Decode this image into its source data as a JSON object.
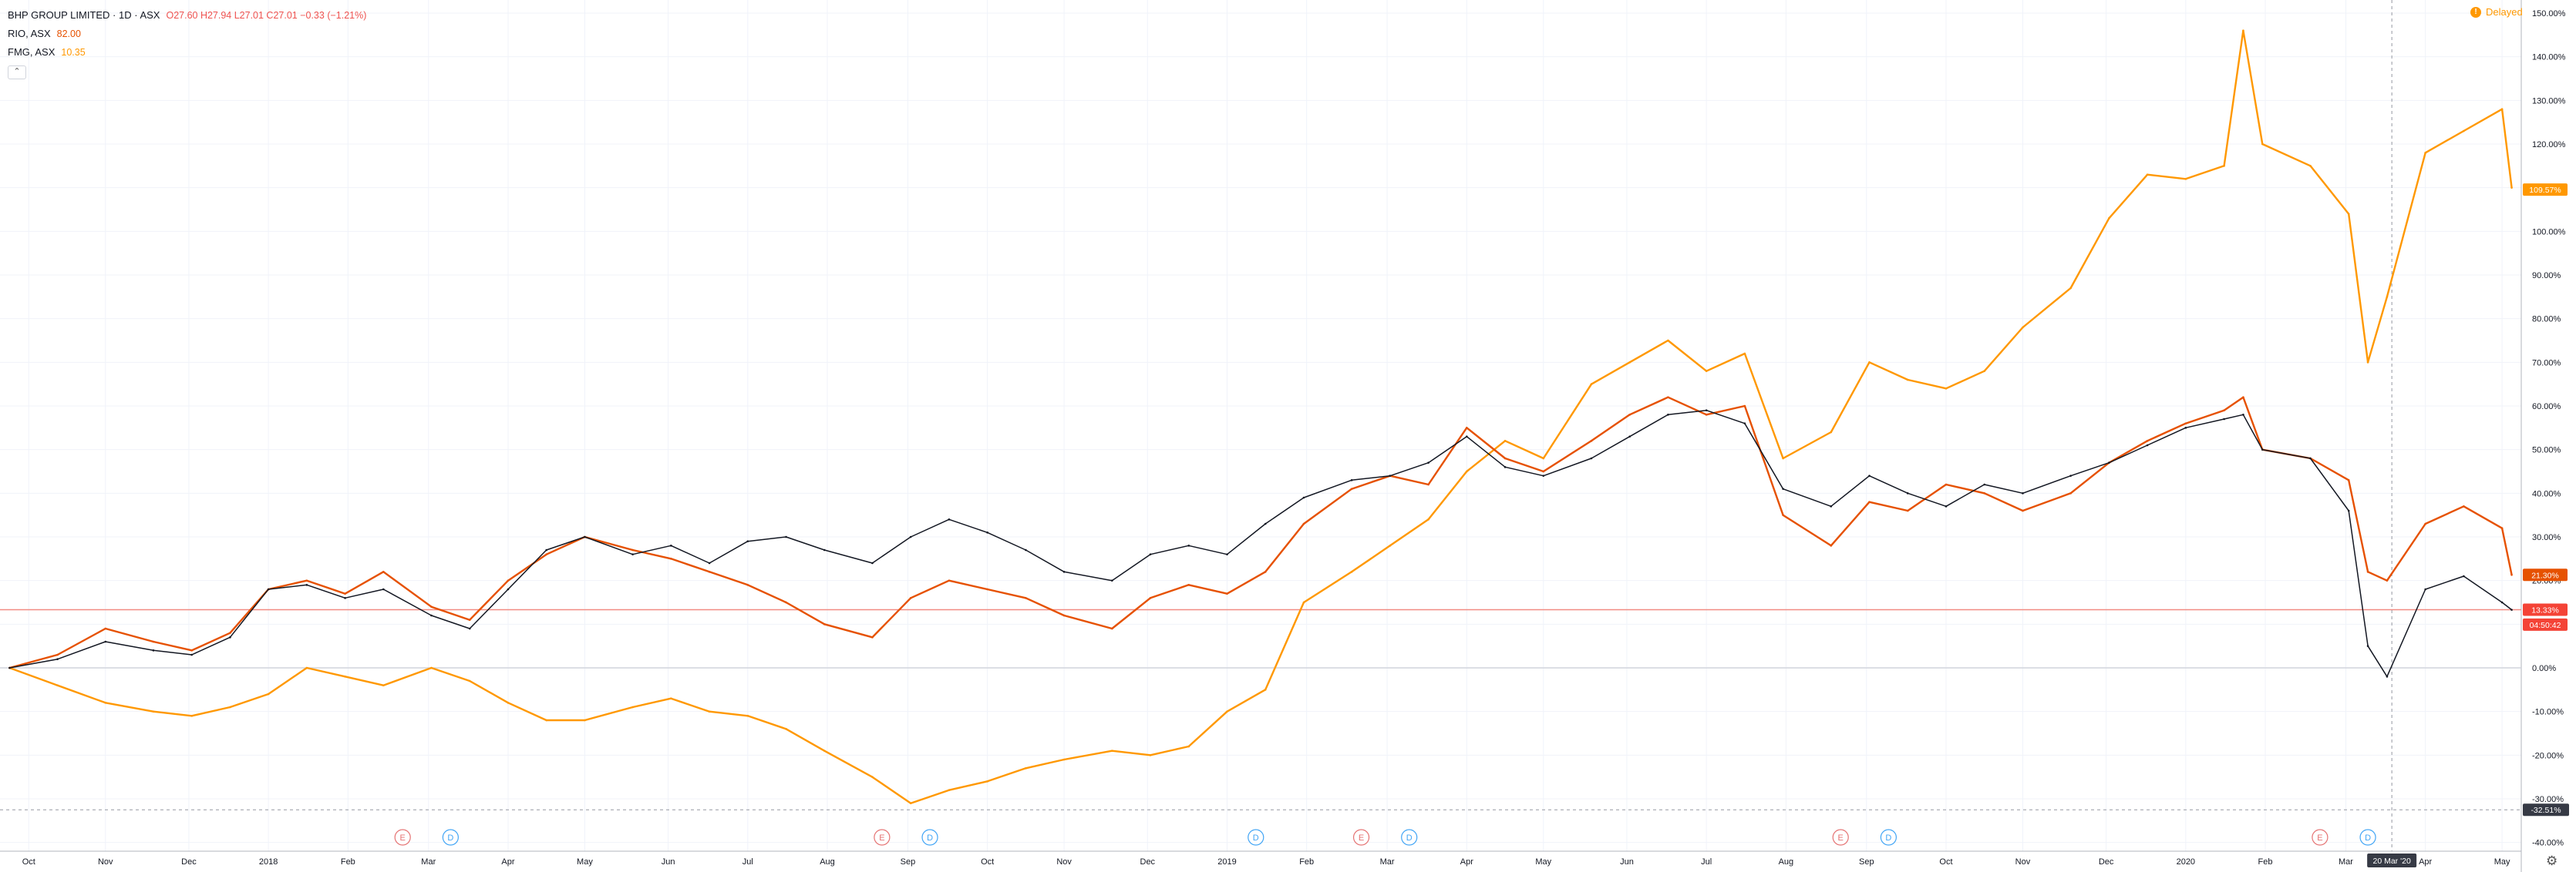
{
  "header": {
    "symbol": "BHP GROUP LIMITED · 1D · ASX",
    "ohlc": "O27.60  H27.94  L27.01  C27.01  −0.33 (−1.21%)",
    "rows": [
      {
        "name": "RIO, ASX",
        "value": "82.00",
        "color": "#e65100"
      },
      {
        "name": "FMG, ASX",
        "value": "10.35",
        "color": "#ff9800"
      }
    ],
    "collapse_icon": "chevron-up-icon"
  },
  "delayed": {
    "label": "Delayed",
    "icon": "!"
  },
  "chart_data": {
    "type": "line",
    "series": [
      {
        "name": "FMG, ASX",
        "color": "#ff9800",
        "values": [
          [
            2017.73,
            0
          ],
          [
            2017.78,
            -4
          ],
          [
            2017.83,
            -8
          ],
          [
            2017.88,
            -10
          ],
          [
            2017.92,
            -11
          ],
          [
            2017.96,
            -9
          ],
          [
            2018.0,
            -6
          ],
          [
            2018.04,
            0
          ],
          [
            2018.08,
            -2
          ],
          [
            2018.12,
            -4
          ],
          [
            2018.17,
            0
          ],
          [
            2018.21,
            -3
          ],
          [
            2018.25,
            -8
          ],
          [
            2018.29,
            -12
          ],
          [
            2018.33,
            -12
          ],
          [
            2018.38,
            -9
          ],
          [
            2018.42,
            -7
          ],
          [
            2018.46,
            -10
          ],
          [
            2018.5,
            -11
          ],
          [
            2018.54,
            -14
          ],
          [
            2018.58,
            -19
          ],
          [
            2018.63,
            -25
          ],
          [
            2018.67,
            -31
          ],
          [
            2018.71,
            -28
          ],
          [
            2018.75,
            -26
          ],
          [
            2018.79,
            -23
          ],
          [
            2018.83,
            -21
          ],
          [
            2018.88,
            -19
          ],
          [
            2018.92,
            -20
          ],
          [
            2018.96,
            -18
          ],
          [
            2019.0,
            -10
          ],
          [
            2019.04,
            -5
          ],
          [
            2019.08,
            15
          ],
          [
            2019.13,
            22
          ],
          [
            2019.17,
            28
          ],
          [
            2019.21,
            34
          ],
          [
            2019.25,
            45
          ],
          [
            2019.29,
            52
          ],
          [
            2019.33,
            48
          ],
          [
            2019.38,
            65
          ],
          [
            2019.42,
            70
          ],
          [
            2019.46,
            75
          ],
          [
            2019.5,
            68
          ],
          [
            2019.54,
            72
          ],
          [
            2019.58,
            48
          ],
          [
            2019.63,
            54
          ],
          [
            2019.67,
            70
          ],
          [
            2019.71,
            66
          ],
          [
            2019.75,
            64
          ],
          [
            2019.79,
            68
          ],
          [
            2019.83,
            78
          ],
          [
            2019.88,
            87
          ],
          [
            2019.92,
            103
          ],
          [
            2019.96,
            113
          ],
          [
            2020.0,
            112
          ],
          [
            2020.04,
            115
          ],
          [
            2020.06,
            146
          ],
          [
            2020.08,
            120
          ],
          [
            2020.13,
            115
          ],
          [
            2020.17,
            104
          ],
          [
            2020.19,
            70
          ],
          [
            2020.21,
            85
          ],
          [
            2020.25,
            118
          ],
          [
            2020.29,
            123
          ],
          [
            2020.33,
            128
          ],
          [
            2020.34,
            110
          ]
        ]
      },
      {
        "name": "RIO, ASX",
        "color": "#e65100",
        "values": [
          [
            2017.73,
            0
          ],
          [
            2017.78,
            3
          ],
          [
            2017.83,
            9
          ],
          [
            2017.88,
            6
          ],
          [
            2017.92,
            4
          ],
          [
            2017.96,
            8
          ],
          [
            2018.0,
            18
          ],
          [
            2018.04,
            20
          ],
          [
            2018.08,
            17
          ],
          [
            2018.12,
            22
          ],
          [
            2018.17,
            14
          ],
          [
            2018.21,
            11
          ],
          [
            2018.25,
            20
          ],
          [
            2018.29,
            26
          ],
          [
            2018.33,
            30
          ],
          [
            2018.38,
            27
          ],
          [
            2018.42,
            25
          ],
          [
            2018.46,
            22
          ],
          [
            2018.5,
            19
          ],
          [
            2018.54,
            15
          ],
          [
            2018.58,
            10
          ],
          [
            2018.63,
            7
          ],
          [
            2018.67,
            16
          ],
          [
            2018.71,
            20
          ],
          [
            2018.75,
            18
          ],
          [
            2018.79,
            16
          ],
          [
            2018.83,
            12
          ],
          [
            2018.88,
            9
          ],
          [
            2018.92,
            16
          ],
          [
            2018.96,
            19
          ],
          [
            2019.0,
            17
          ],
          [
            2019.04,
            22
          ],
          [
            2019.08,
            33
          ],
          [
            2019.13,
            41
          ],
          [
            2019.17,
            44
          ],
          [
            2019.21,
            42
          ],
          [
            2019.25,
            55
          ],
          [
            2019.29,
            48
          ],
          [
            2019.33,
            45
          ],
          [
            2019.38,
            52
          ],
          [
            2019.42,
            58
          ],
          [
            2019.46,
            62
          ],
          [
            2019.5,
            58
          ],
          [
            2019.54,
            60
          ],
          [
            2019.58,
            35
          ],
          [
            2019.63,
            28
          ],
          [
            2019.67,
            38
          ],
          [
            2019.71,
            36
          ],
          [
            2019.75,
            42
          ],
          [
            2019.79,
            40
          ],
          [
            2019.83,
            36
          ],
          [
            2019.88,
            40
          ],
          [
            2019.92,
            47
          ],
          [
            2019.96,
            52
          ],
          [
            2020.0,
            56
          ],
          [
            2020.04,
            59
          ],
          [
            2020.06,
            62
          ],
          [
            2020.08,
            50
          ],
          [
            2020.13,
            48
          ],
          [
            2020.17,
            43
          ],
          [
            2020.19,
            22
          ],
          [
            2020.21,
            20
          ],
          [
            2020.25,
            33
          ],
          [
            2020.29,
            37
          ],
          [
            2020.33,
            32
          ],
          [
            2020.34,
            21.3
          ]
        ]
      },
      {
        "name": "BHP GROUP LIMITED",
        "color": "#131722",
        "values": [
          [
            2017.73,
            0
          ],
          [
            2017.78,
            2
          ],
          [
            2017.83,
            6
          ],
          [
            2017.88,
            4
          ],
          [
            2017.92,
            3
          ],
          [
            2017.96,
            7
          ],
          [
            2018.0,
            18
          ],
          [
            2018.04,
            19
          ],
          [
            2018.08,
            16
          ],
          [
            2018.12,
            18
          ],
          [
            2018.17,
            12
          ],
          [
            2018.21,
            9
          ],
          [
            2018.25,
            18
          ],
          [
            2018.29,
            27
          ],
          [
            2018.33,
            30
          ],
          [
            2018.38,
            26
          ],
          [
            2018.42,
            28
          ],
          [
            2018.46,
            24
          ],
          [
            2018.5,
            29
          ],
          [
            2018.54,
            30
          ],
          [
            2018.58,
            27
          ],
          [
            2018.63,
            24
          ],
          [
            2018.67,
            30
          ],
          [
            2018.71,
            34
          ],
          [
            2018.75,
            31
          ],
          [
            2018.79,
            27
          ],
          [
            2018.83,
            22
          ],
          [
            2018.88,
            20
          ],
          [
            2018.92,
            26
          ],
          [
            2018.96,
            28
          ],
          [
            2019.0,
            26
          ],
          [
            2019.04,
            33
          ],
          [
            2019.08,
            39
          ],
          [
            2019.13,
            43
          ],
          [
            2019.17,
            44
          ],
          [
            2019.21,
            47
          ],
          [
            2019.25,
            53
          ],
          [
            2019.29,
            46
          ],
          [
            2019.33,
            44
          ],
          [
            2019.38,
            48
          ],
          [
            2019.42,
            53
          ],
          [
            2019.46,
            58
          ],
          [
            2019.5,
            59
          ],
          [
            2019.54,
            56
          ],
          [
            2019.58,
            41
          ],
          [
            2019.63,
            37
          ],
          [
            2019.67,
            44
          ],
          [
            2019.71,
            40
          ],
          [
            2019.75,
            37
          ],
          [
            2019.79,
            42
          ],
          [
            2019.83,
            40
          ],
          [
            2019.88,
            44
          ],
          [
            2019.92,
            47
          ],
          [
            2019.96,
            51
          ],
          [
            2020.0,
            55
          ],
          [
            2020.04,
            57
          ],
          [
            2020.06,
            58
          ],
          [
            2020.08,
            50
          ],
          [
            2020.13,
            48
          ],
          [
            2020.17,
            36
          ],
          [
            2020.19,
            5
          ],
          [
            2020.21,
            -2
          ],
          [
            2020.25,
            18
          ],
          [
            2020.29,
            21
          ],
          [
            2020.33,
            15
          ],
          [
            2020.34,
            13.3
          ]
        ]
      }
    ],
    "x_ticks": [
      {
        "x": 2017.75,
        "label": "Oct"
      },
      {
        "x": 2017.83,
        "label": "Nov"
      },
      {
        "x": 2017.917,
        "label": "Dec"
      },
      {
        "x": 2018.0,
        "label": "2018"
      },
      {
        "x": 2018.083,
        "label": "Feb"
      },
      {
        "x": 2018.167,
        "label": "Mar"
      },
      {
        "x": 2018.25,
        "label": "Apr"
      },
      {
        "x": 2018.33,
        "label": "May"
      },
      {
        "x": 2018.417,
        "label": "Jun"
      },
      {
        "x": 2018.5,
        "label": "Jul"
      },
      {
        "x": 2018.583,
        "label": "Aug"
      },
      {
        "x": 2018.667,
        "label": "Sep"
      },
      {
        "x": 2018.75,
        "label": "Oct"
      },
      {
        "x": 2018.83,
        "label": "Nov"
      },
      {
        "x": 2018.917,
        "label": "Dec"
      },
      {
        "x": 2019.0,
        "label": "2019"
      },
      {
        "x": 2019.083,
        "label": "Feb"
      },
      {
        "x": 2019.167,
        "label": "Mar"
      },
      {
        "x": 2019.25,
        "label": "Apr"
      },
      {
        "x": 2019.33,
        "label": "May"
      },
      {
        "x": 2019.417,
        "label": "Jun"
      },
      {
        "x": 2019.5,
        "label": "Jul"
      },
      {
        "x": 2019.583,
        "label": "Aug"
      },
      {
        "x": 2019.667,
        "label": "Sep"
      },
      {
        "x": 2019.75,
        "label": "Oct"
      },
      {
        "x": 2019.83,
        "label": "Nov"
      },
      {
        "x": 2019.917,
        "label": "Dec"
      },
      {
        "x": 2020.0,
        "label": "2020"
      },
      {
        "x": 2020.083,
        "label": "Feb"
      },
      {
        "x": 2020.167,
        "label": "Mar"
      },
      {
        "x": 2020.25,
        "label": "Apr"
      },
      {
        "x": 2020.33,
        "label": "May"
      }
    ],
    "y_ticks": [
      150,
      140,
      130,
      120,
      110,
      100,
      90,
      80,
      70,
      60,
      50,
      40,
      30,
      20,
      10,
      0,
      -10,
      -20,
      -30,
      -40
    ],
    "y_tick_labels": [
      "150.00%",
      "140.00%",
      "130.00%",
      "120.00%",
      "110.00%",
      "100.00%",
      "90.00%",
      "80.00%",
      "70.00%",
      "60.00%",
      "50.00%",
      "40.00%",
      "30.00%",
      "20.00%",
      "10.00%",
      "0.00%",
      "-10.00%",
      "-20.00%",
      "-30.00%",
      "-40.00%"
    ],
    "xlim": [
      2017.72,
      2020.35
    ],
    "ylim": [
      -42,
      153
    ],
    "grid": true,
    "y_scale": "percent",
    "events": [
      {
        "x": 2018.14,
        "label": "E",
        "kind": "earnings",
        "color": "#e57373"
      },
      {
        "x": 2018.19,
        "label": "D",
        "kind": "dividend",
        "color": "#42a5f5"
      },
      {
        "x": 2018.64,
        "label": "E",
        "kind": "earnings",
        "color": "#e57373"
      },
      {
        "x": 2018.69,
        "label": "D",
        "kind": "dividend",
        "color": "#42a5f5"
      },
      {
        "x": 2019.03,
        "label": "D",
        "kind": "dividend",
        "color": "#42a5f5"
      },
      {
        "x": 2019.14,
        "label": "E",
        "kind": "earnings",
        "color": "#e57373"
      },
      {
        "x": 2019.19,
        "label": "D",
        "kind": "dividend",
        "color": "#42a5f5"
      },
      {
        "x": 2019.64,
        "label": "E",
        "kind": "earnings",
        "color": "#e57373"
      },
      {
        "x": 2019.69,
        "label": "D",
        "kind": "dividend",
        "color": "#42a5f5"
      },
      {
        "x": 2020.14,
        "label": "E",
        "kind": "earnings",
        "color": "#e57373"
      },
      {
        "x": 2020.19,
        "label": "D",
        "kind": "dividend",
        "color": "#42a5f5"
      }
    ],
    "price_labels": [
      {
        "value": 109.57,
        "text": "109.57%",
        "color": "#ff9800"
      },
      {
        "value": 21.3,
        "text": "21.30%",
        "color": "#e65100"
      },
      {
        "value": 13.33,
        "text": "13.33%",
        "color": "#f44336"
      },
      {
        "value": 9.9,
        "text": "04:50:42",
        "color": "#f44336"
      }
    ],
    "hline": {
      "value": 13.33,
      "color": "#f28b82"
    },
    "zero_line": 0,
    "crosshair": {
      "x": 2020.215,
      "y": -32.51,
      "x_label": "20 Mar '20",
      "y_label": "-32.51%"
    }
  }
}
